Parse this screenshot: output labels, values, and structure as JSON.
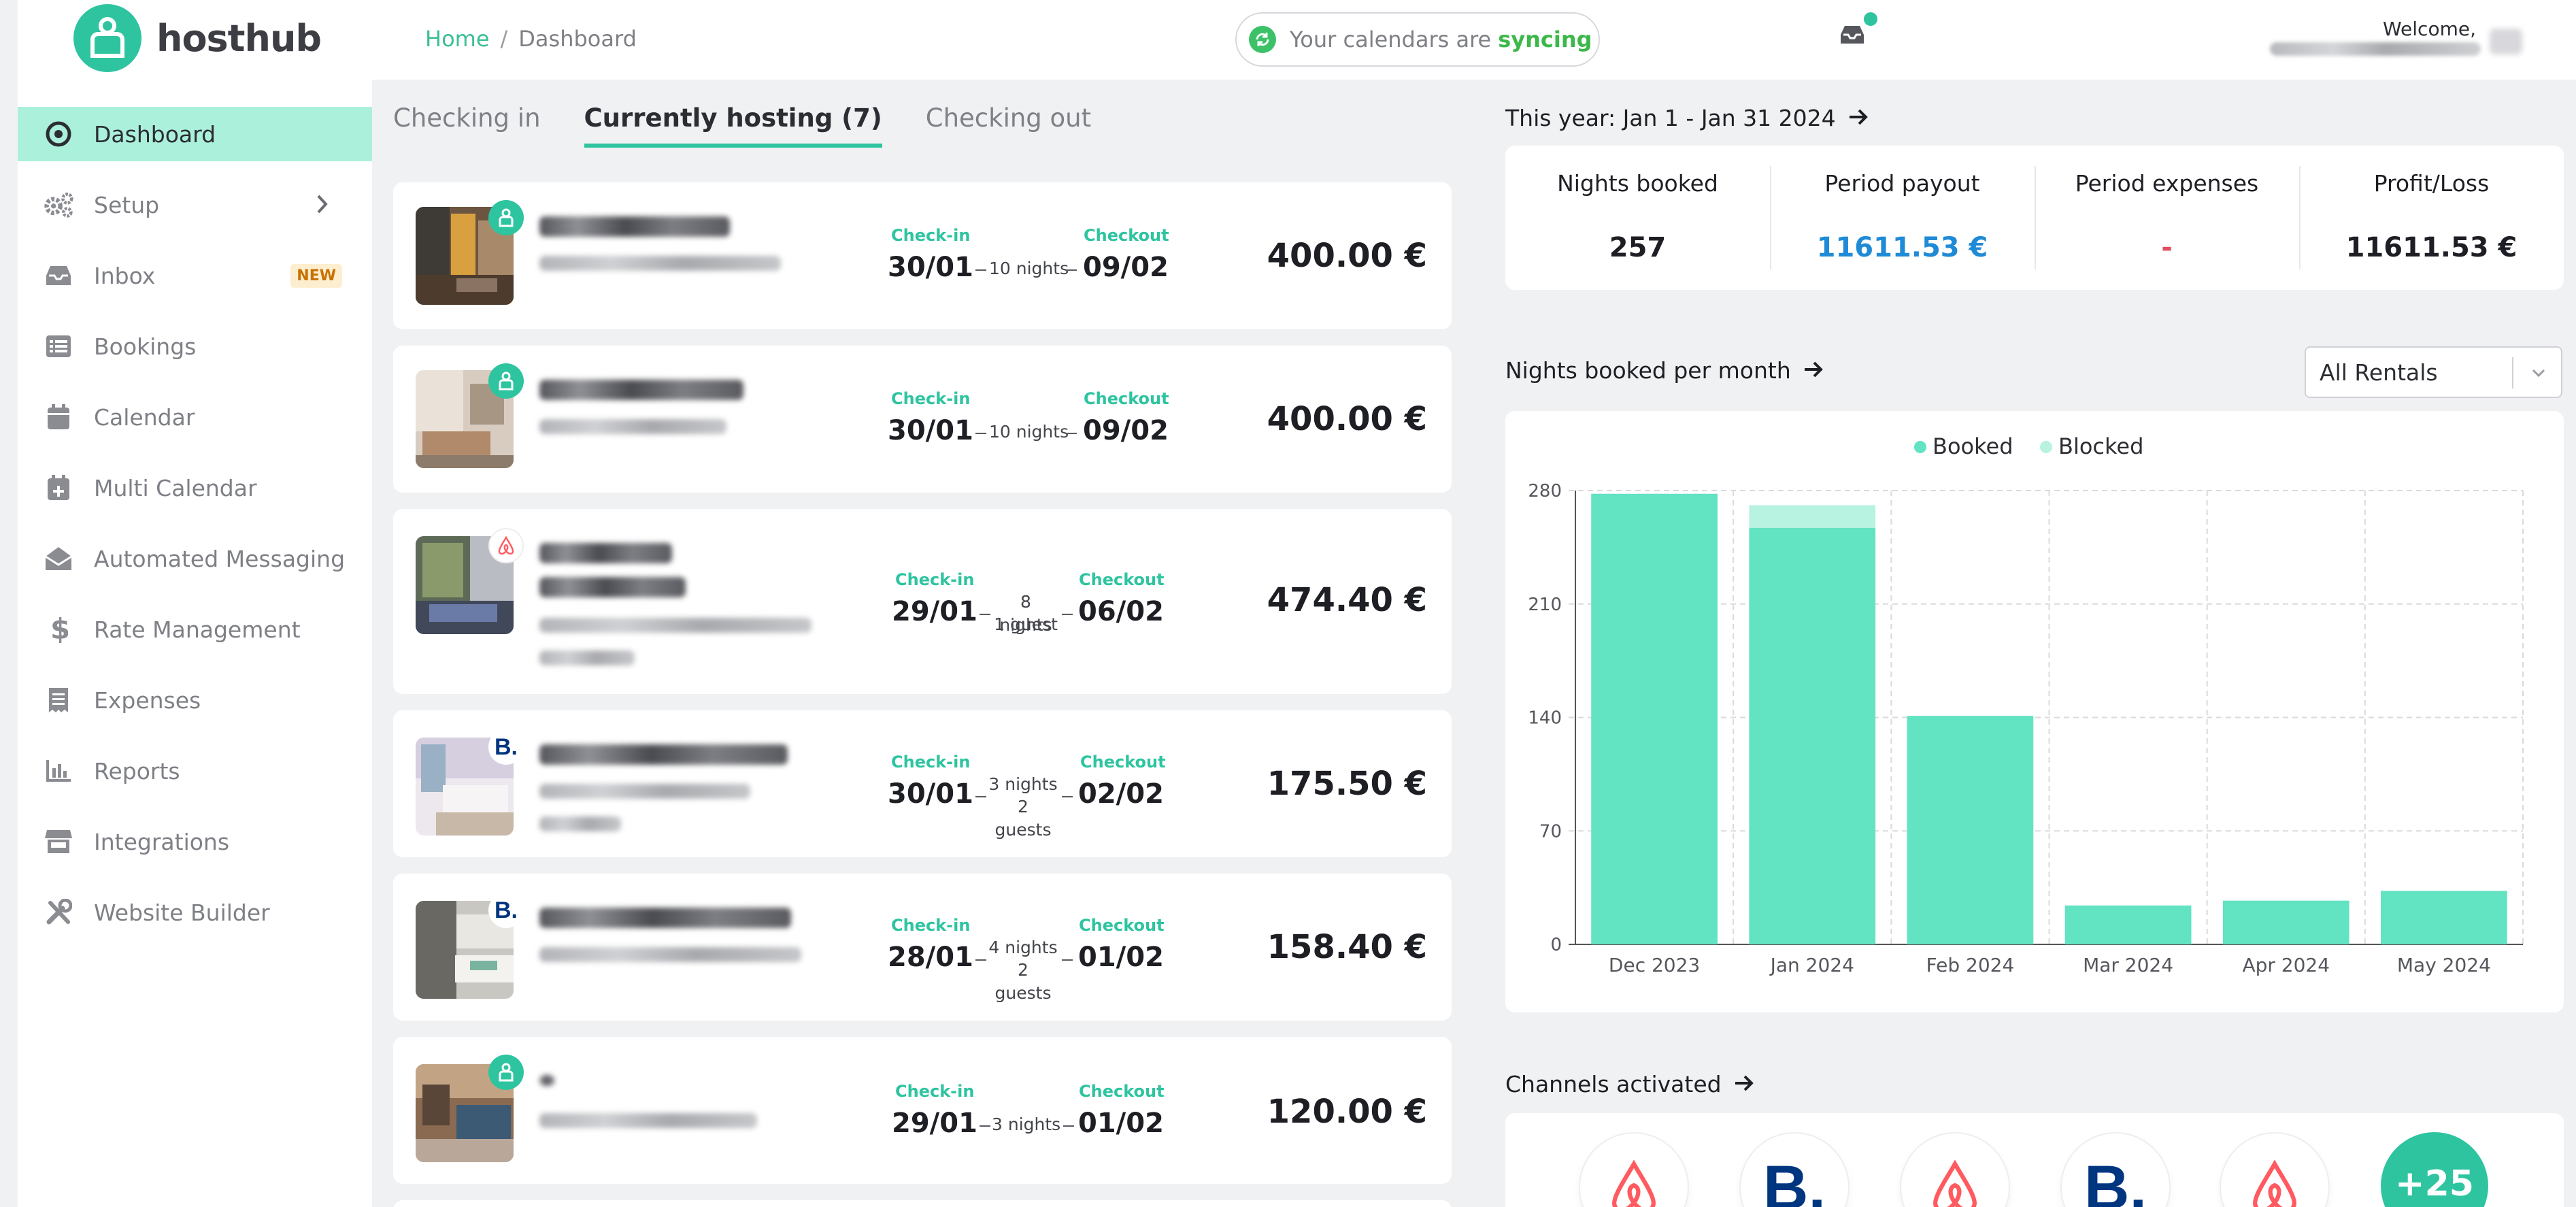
{
  "app": {
    "name": "hosthub"
  },
  "sidebar": {
    "items": [
      {
        "label": "Dashboard",
        "icon": "dashboard-icon",
        "active": true
      },
      {
        "label": "Setup",
        "icon": "gears-icon",
        "has_chevron": true
      },
      {
        "label": "Inbox",
        "icon": "inbox-icon",
        "badge": "NEW"
      },
      {
        "label": "Bookings",
        "icon": "list-icon"
      },
      {
        "label": "Calendar",
        "icon": "calendar-icon"
      },
      {
        "label": "Multi Calendar",
        "icon": "calendar-plus-icon"
      },
      {
        "label": "Automated Messaging",
        "icon": "envelope-open-icon"
      },
      {
        "label": "Rate Management",
        "icon": "dollar-icon"
      },
      {
        "label": "Expenses",
        "icon": "receipt-icon"
      },
      {
        "label": "Reports",
        "icon": "bar-chart-icon"
      },
      {
        "label": "Integrations",
        "icon": "store-icon"
      },
      {
        "label": "Website Builder",
        "icon": "tools-icon"
      }
    ]
  },
  "header": {
    "breadcrumb": [
      "Home",
      "Dashboard"
    ],
    "sync_text": "Your calendars are",
    "sync_status": "syncing",
    "welcome": "Welcome,"
  },
  "tabs": [
    {
      "label": "Checking in",
      "active": false
    },
    {
      "label": "Currently hosting (7)",
      "active": true
    },
    {
      "label": "Checking out",
      "active": false
    }
  ],
  "booking_labels": {
    "checkin": "Check-in",
    "checkout": "Checkout"
  },
  "bookings": [
    {
      "channel": "hosthub",
      "checkin": "30/01",
      "checkout": "09/02",
      "nights": "10 nights",
      "guests": "",
      "price": "400.00 €"
    },
    {
      "channel": "hosthub",
      "checkin": "30/01",
      "checkout": "09/02",
      "nights": "10 nights",
      "guests": "",
      "price": "400.00 €"
    },
    {
      "channel": "airbnb",
      "checkin": "29/01",
      "checkout": "06/02",
      "nights": "8 nights",
      "guests": "1 guest",
      "price": "474.40 €"
    },
    {
      "channel": "booking",
      "checkin": "30/01",
      "checkout": "02/02",
      "nights": "3 nights",
      "guests": "2 guests",
      "price": "175.50 €"
    },
    {
      "channel": "booking",
      "checkin": "28/01",
      "checkout": "01/02",
      "nights": "4 nights",
      "guests": "2 guests",
      "price": "158.40 €"
    },
    {
      "channel": "hosthub",
      "checkin": "29/01",
      "checkout": "01/02",
      "nights": "3 nights",
      "guests": "",
      "price": "120.00 €"
    }
  ],
  "period": {
    "title": "This year: Jan 1 - Jan 31 2024"
  },
  "stats": [
    {
      "label": "Nights booked",
      "value": "257"
    },
    {
      "label": "Period payout",
      "value": "11611.53 €"
    },
    {
      "label": "Period expenses",
      "value": "-"
    },
    {
      "label": "Profit/Loss",
      "value": "11611.53 €"
    }
  ],
  "nights_chart": {
    "title": "Nights booked per month",
    "select_value": "All Rentals"
  },
  "chart_data": {
    "type": "bar",
    "stacked": true,
    "categories": [
      "Dec 2023",
      "Jan 2024",
      "Feb 2024",
      "Mar 2024",
      "Apr 2024",
      "May 2024"
    ],
    "series": [
      {
        "name": "Booked",
        "values": [
          278,
          257,
          141,
          24,
          27,
          33
        ],
        "color": "#62e3c2"
      },
      {
        "name": "Blocked",
        "values": [
          0,
          14,
          0,
          0,
          0,
          0
        ],
        "color": "#b8f2e1"
      }
    ],
    "yticks": [
      0,
      70,
      140,
      210,
      280
    ],
    "ylim": [
      0,
      280
    ],
    "grid": true,
    "legend": "top-center"
  },
  "channels": {
    "title": "Channels activated",
    "items": [
      "airbnb",
      "booking",
      "airbnb",
      "booking",
      "airbnb"
    ],
    "more": "+25"
  },
  "colors": {
    "accent": "#2ec4a0",
    "payout": "#1f8ad6",
    "expense": "#e05060",
    "airbnb": "#ff5a5f",
    "booking": "#003580"
  }
}
